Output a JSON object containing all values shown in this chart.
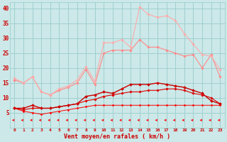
{
  "x": [
    0,
    1,
    2,
    3,
    4,
    5,
    6,
    7,
    8,
    9,
    10,
    11,
    12,
    13,
    14,
    15,
    16,
    17,
    18,
    19,
    20,
    21,
    22,
    23
  ],
  "series": [
    {
      "color": "#ff0000",
      "linewidth": 0.7,
      "marker": "D",
      "markersize": 1.5,
      "values": [
        6.5,
        5.5,
        5.0,
        4.5,
        5.0,
        5.5,
        6.0,
        6.5,
        7.0,
        7.5,
        7.5,
        7.5,
        7.5,
        7.5,
        7.5,
        7.5,
        7.5,
        7.5,
        7.5,
        7.5,
        7.5,
        7.5,
        7.5,
        7.5
      ]
    },
    {
      "color": "#dd0000",
      "linewidth": 0.8,
      "marker": "D",
      "markersize": 1.8,
      "values": [
        6.5,
        6.0,
        6.5,
        6.5,
        6.5,
        7.0,
        7.5,
        8.0,
        9.0,
        9.5,
        10.5,
        11.0,
        11.5,
        12.0,
        12.0,
        12.5,
        12.5,
        13.0,
        13.0,
        12.5,
        11.5,
        11.0,
        10.0,
        8.0
      ]
    },
    {
      "color": "#cc0000",
      "linewidth": 1.0,
      "marker": "D",
      "markersize": 2.0,
      "values": [
        6.5,
        6.5,
        7.5,
        6.5,
        6.5,
        7.0,
        7.5,
        8.0,
        10.5,
        11.0,
        12.0,
        11.5,
        13.0,
        14.5,
        14.5,
        14.5,
        15.0,
        14.5,
        14.0,
        13.5,
        12.5,
        11.5,
        9.0,
        8.0
      ]
    },
    {
      "color": "#ff8888",
      "linewidth": 0.8,
      "marker": "D",
      "markersize": 1.8,
      "values": [
        16.0,
        15.0,
        17.0,
        12.0,
        11.0,
        12.5,
        13.5,
        15.0,
        19.5,
        14.5,
        25.0,
        26.0,
        26.0,
        26.0,
        29.5,
        27.0,
        27.0,
        26.0,
        25.0,
        24.0,
        24.5,
        20.0,
        24.5,
        17.0
      ]
    },
    {
      "color": "#ffaaaa",
      "linewidth": 0.8,
      "marker": "D",
      "markersize": 1.8,
      "values": [
        16.5,
        15.0,
        17.0,
        12.0,
        11.0,
        13.0,
        14.0,
        16.0,
        20.5,
        15.5,
        28.5,
        28.5,
        29.5,
        27.0,
        40.5,
        38.0,
        37.0,
        37.5,
        36.0,
        31.5,
        28.0,
        24.5,
        24.0,
        19.5
      ]
    }
  ],
  "xlabel": "Vent moyen/en rafales ( km/h )",
  "ylim": [
    0,
    42
  ],
  "yticks": [
    5,
    10,
    15,
    20,
    25,
    30,
    35,
    40
  ],
  "xlim": [
    -0.5,
    23.5
  ],
  "bg_color": "#cce8e8",
  "grid_color": "#99cccc",
  "arrow_color": "#ff0000",
  "xlabel_color": "#cc0000",
  "tick_color": "#cc0000"
}
